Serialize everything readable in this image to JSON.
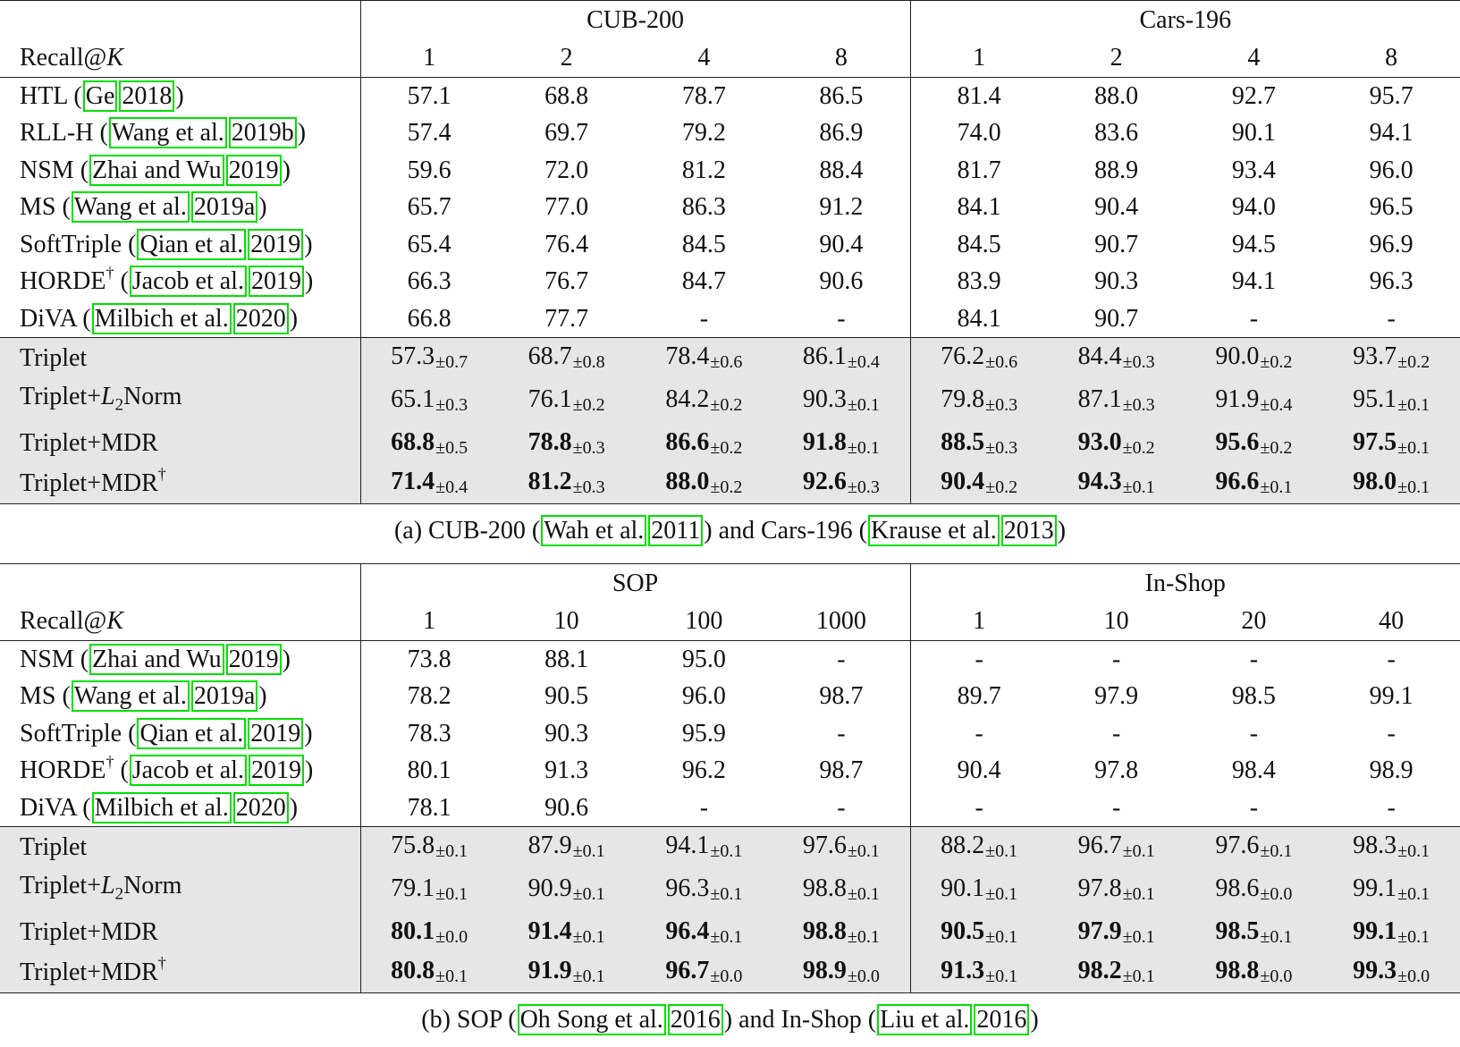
{
  "tables": [
    {
      "id": "a",
      "groups": [
        "CUB-200",
        "Cars-196"
      ],
      "metric_label": "Recall@",
      "metric_var": "K",
      "ks": [
        [
          "1",
          "2",
          "4",
          "8"
        ],
        [
          "1",
          "2",
          "4",
          "8"
        ]
      ],
      "baselines": [
        {
          "method": "HTL",
          "cite_author": "Ge",
          "cite_year": "2018",
          "dagger": false,
          "values": [
            "57.1",
            "68.8",
            "78.7",
            "86.5",
            "81.4",
            "88.0",
            "92.7",
            "95.7"
          ]
        },
        {
          "method": "RLL-H",
          "cite_author": "Wang et al.",
          "cite_year": "2019b",
          "dagger": false,
          "values": [
            "57.4",
            "69.7",
            "79.2",
            "86.9",
            "74.0",
            "83.6",
            "90.1",
            "94.1"
          ]
        },
        {
          "method": "NSM",
          "cite_author": "Zhai and Wu",
          "cite_year": "2019",
          "dagger": false,
          "values": [
            "59.6",
            "72.0",
            "81.2",
            "88.4",
            "81.7",
            "88.9",
            "93.4",
            "96.0"
          ]
        },
        {
          "method": "MS",
          "cite_author": "Wang et al.",
          "cite_year": "2019a",
          "dagger": false,
          "values": [
            "65.7",
            "77.0",
            "86.3",
            "91.2",
            "84.1",
            "90.4",
            "94.0",
            "96.5"
          ]
        },
        {
          "method": "SoftTriple",
          "cite_author": "Qian et al.",
          "cite_year": "2019",
          "dagger": false,
          "values": [
            "65.4",
            "76.4",
            "84.5",
            "90.4",
            "84.5",
            "90.7",
            "94.5",
            "96.9"
          ]
        },
        {
          "method": "HORDE",
          "cite_author": "Jacob et al.",
          "cite_year": "2019",
          "dagger": true,
          "values": [
            "66.3",
            "76.7",
            "84.7",
            "90.6",
            "83.9",
            "90.3",
            "94.1",
            "96.3"
          ]
        },
        {
          "method": "DiVA",
          "cite_author": "Milbich et al.",
          "cite_year": "2020",
          "dagger": false,
          "values": [
            "66.8",
            "77.7",
            "-",
            "-",
            "84.1",
            "90.7",
            "-",
            "-"
          ]
        }
      ],
      "ours": [
        {
          "method": "Triplet",
          "dagger": false,
          "bold": false,
          "values": [
            "57.3",
            "68.7",
            "78.4",
            "86.1",
            "76.2",
            "84.4",
            "90.0",
            "93.7"
          ],
          "stds": [
            "±0.7",
            "±0.8",
            "±0.6",
            "±0.4",
            "±0.6",
            "±0.3",
            "±0.2",
            "±0.2"
          ]
        },
        {
          "method": "Triplet+",
          "norm": "Norm",
          "dagger": false,
          "bold": false,
          "values": [
            "65.1",
            "76.1",
            "84.2",
            "90.3",
            "79.8",
            "87.1",
            "91.9",
            "95.1"
          ],
          "stds": [
            "±0.3",
            "±0.2",
            "±0.2",
            "±0.1",
            "±0.3",
            "±0.3",
            "±0.4",
            "±0.1"
          ]
        },
        {
          "method": "Triplet+MDR",
          "dagger": false,
          "bold": true,
          "values": [
            "68.8",
            "78.8",
            "86.6",
            "91.8",
            "88.5",
            "93.0",
            "95.6",
            "97.5"
          ],
          "stds": [
            "±0.5",
            "±0.3",
            "±0.2",
            "±0.1",
            "±0.3",
            "±0.2",
            "±0.2",
            "±0.1"
          ]
        },
        {
          "method": "Triplet+MDR",
          "dagger": true,
          "bold": true,
          "values": [
            "71.4",
            "81.2",
            "88.0",
            "92.6",
            "90.4",
            "94.3",
            "96.6",
            "98.0"
          ],
          "stds": [
            "±0.4",
            "±0.3",
            "±0.2",
            "±0.3",
            "±0.2",
            "±0.1",
            "±0.1",
            "±0.1"
          ]
        }
      ],
      "caption": {
        "prefix": "(a) CUB-200 (",
        "c1_author": "Wah et al.",
        "c1_year": "2011",
        "mid": ") and Cars-196 (",
        "c2_author": "Krause et al.",
        "c2_year": "2013",
        "suffix": ")"
      }
    },
    {
      "id": "b",
      "groups": [
        "SOP",
        "In-Shop"
      ],
      "metric_label": "Recall@",
      "metric_var": "K",
      "ks": [
        [
          "1",
          "10",
          "100",
          "1000"
        ],
        [
          "1",
          "10",
          "20",
          "40"
        ]
      ],
      "baselines": [
        {
          "method": "NSM",
          "cite_author": "Zhai and Wu",
          "cite_year": "2019",
          "dagger": false,
          "values": [
            "73.8",
            "88.1",
            "95.0",
            "-",
            "-",
            "-",
            "-",
            "-"
          ]
        },
        {
          "method": "MS",
          "cite_author": "Wang et al.",
          "cite_year": "2019a",
          "dagger": false,
          "values": [
            "78.2",
            "90.5",
            "96.0",
            "98.7",
            "89.7",
            "97.9",
            "98.5",
            "99.1"
          ]
        },
        {
          "method": "SoftTriple",
          "cite_author": "Qian et al.",
          "cite_year": "2019",
          "dagger": false,
          "values": [
            "78.3",
            "90.3",
            "95.9",
            "-",
            "-",
            "-",
            "-",
            "-"
          ]
        },
        {
          "method": "HORDE",
          "cite_author": "Jacob et al.",
          "cite_year": "2019",
          "dagger": true,
          "values": [
            "80.1",
            "91.3",
            "96.2",
            "98.7",
            "90.4",
            "97.8",
            "98.4",
            "98.9"
          ]
        },
        {
          "method": "DiVA",
          "cite_author": "Milbich et al.",
          "cite_year": "2020",
          "dagger": false,
          "values": [
            "78.1",
            "90.6",
            "-",
            "-",
            "-",
            "-",
            "-",
            "-"
          ]
        }
      ],
      "ours": [
        {
          "method": "Triplet",
          "dagger": false,
          "bold": false,
          "values": [
            "75.8",
            "87.9",
            "94.1",
            "97.6",
            "88.2",
            "96.7",
            "97.6",
            "98.3"
          ],
          "stds": [
            "±0.1",
            "±0.1",
            "±0.1",
            "±0.1",
            "±0.1",
            "±0.1",
            "±0.1",
            "±0.1"
          ]
        },
        {
          "method": "Triplet+",
          "norm": "Norm",
          "dagger": false,
          "bold": false,
          "values": [
            "79.1",
            "90.9",
            "96.3",
            "98.8",
            "90.1",
            "97.8",
            "98.6",
            "99.1"
          ],
          "stds": [
            "±0.1",
            "±0.1",
            "±0.1",
            "±0.1",
            "±0.1",
            "±0.1",
            "±0.0",
            "±0.1"
          ]
        },
        {
          "method": "Triplet+MDR",
          "dagger": false,
          "bold": true,
          "values": [
            "80.1",
            "91.4",
            "96.4",
            "98.8",
            "90.5",
            "97.9",
            "98.5",
            "99.1"
          ],
          "stds": [
            "±0.0",
            "±0.1",
            "±0.1",
            "±0.1",
            "±0.1",
            "±0.1",
            "±0.1",
            "±0.1"
          ]
        },
        {
          "method": "Triplet+MDR",
          "dagger": true,
          "bold": true,
          "values": [
            "80.8",
            "91.9",
            "96.7",
            "98.9",
            "91.3",
            "98.2",
            "98.8",
            "99.3"
          ],
          "stds": [
            "±0.1",
            "±0.1",
            "±0.0",
            "±0.0",
            "±0.1",
            "±0.1",
            "±0.0",
            "±0.0"
          ]
        }
      ],
      "caption": {
        "prefix": "(b) SOP (",
        "c1_author": "Oh Song et al.",
        "c1_year": "2016",
        "mid": ") and In-Shop (",
        "c2_author": "Liu et al.",
        "c2_year": "2016",
        "suffix": ")"
      }
    }
  ]
}
